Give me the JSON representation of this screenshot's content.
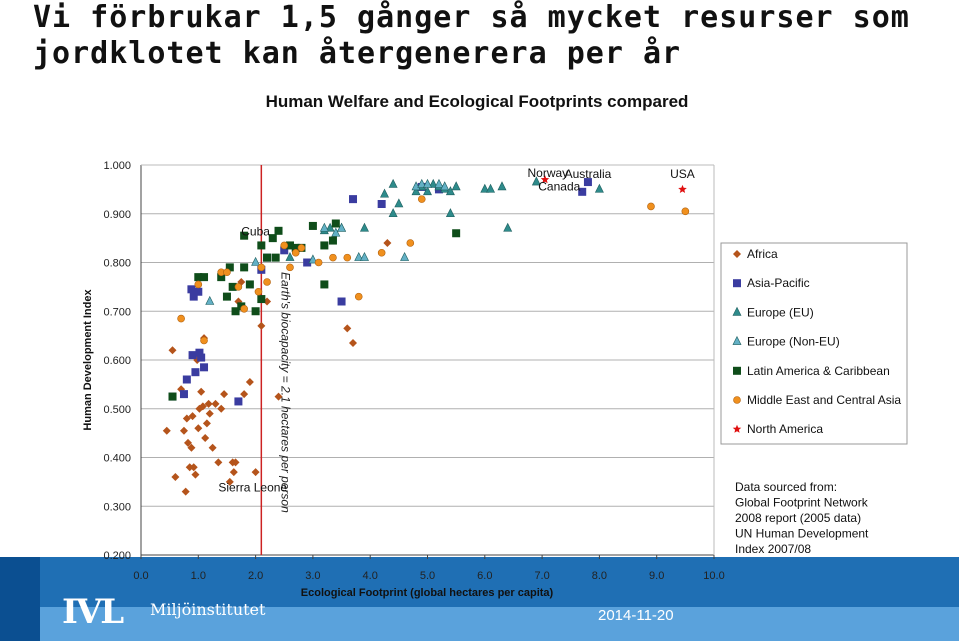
{
  "slide": {
    "title": "Vi förbrukar 1,5 gånger så mycket resurser som jordklotet kan återgenerera per år",
    "logo_text": "IVL",
    "logo_subtitle": "Miljöinstitutet",
    "date": "2014-11-20"
  },
  "colors": {
    "footer_dark": "#1f6fb4",
    "footer_light": "#5aa2dc"
  },
  "chart_data": {
    "type": "scatter",
    "title": "Human Welfare and Ecological Footprints compared",
    "xlabel": "Ecological Footprint (global hectares per capita)",
    "ylabel": "Human Development Index",
    "xlim": [
      0,
      10
    ],
    "ylim": [
      0.2,
      1.0
    ],
    "xticks": [
      "0.0",
      "1.0",
      "2.0",
      "3.0",
      "4.0",
      "5.0",
      "6.0",
      "7.0",
      "8.0",
      "9.0",
      "10.0"
    ],
    "yticks": [
      "0.200",
      "0.300",
      "0.400",
      "0.500",
      "0.600",
      "0.700",
      "0.800",
      "0.900",
      "1.000"
    ],
    "grid": "horizontal",
    "legend_position": "right",
    "reference_line": {
      "x": 2.1,
      "label": "Earth's biocapacity = 2.1 hectares per person",
      "color": "#cc2222"
    },
    "annotations": [
      {
        "text": "Cuba",
        "x": 2.0,
        "y": 0.855
      },
      {
        "text": "Sierra Leone",
        "x": 1.95,
        "y": 0.33
      },
      {
        "text": "Norway",
        "x": 7.1,
        "y": 0.975
      },
      {
        "text": "Canada",
        "x": 7.3,
        "y": 0.948
      },
      {
        "text": "Australia",
        "x": 7.8,
        "y": 0.973
      },
      {
        "text": "USA",
        "x": 9.45,
        "y": 0.973
      }
    ],
    "source_note": [
      "Data sourced from:",
      "Global Footprint Network",
      "2008 report (2005 data)",
      "UN Human Development",
      "Index 2007/08"
    ],
    "series": [
      {
        "name": "Africa",
        "marker": "diamond",
        "color": "#b5541b",
        "points": [
          [
            0.45,
            0.455
          ],
          [
            0.55,
            0.62
          ],
          [
            0.6,
            0.36
          ],
          [
            0.7,
            0.54
          ],
          [
            0.75,
            0.455
          ],
          [
            0.78,
            0.33
          ],
          [
            0.8,
            0.48
          ],
          [
            0.82,
            0.43
          ],
          [
            0.85,
            0.38
          ],
          [
            0.88,
            0.42
          ],
          [
            0.9,
            0.485
          ],
          [
            0.92,
            0.38
          ],
          [
            0.95,
            0.365
          ],
          [
            0.98,
            0.6
          ],
          [
            1.0,
            0.46
          ],
          [
            1.02,
            0.5
          ],
          [
            1.05,
            0.535
          ],
          [
            1.08,
            0.505
          ],
          [
            1.1,
            0.645
          ],
          [
            1.12,
            0.44
          ],
          [
            1.15,
            0.47
          ],
          [
            1.18,
            0.51
          ],
          [
            1.2,
            0.49
          ],
          [
            1.25,
            0.42
          ],
          [
            1.3,
            0.51
          ],
          [
            1.35,
            0.39
          ],
          [
            1.4,
            0.5
          ],
          [
            1.45,
            0.53
          ],
          [
            1.5,
            0.73
          ],
          [
            1.55,
            0.35
          ],
          [
            1.6,
            0.39
          ],
          [
            1.62,
            0.37
          ],
          [
            1.65,
            0.39
          ],
          [
            1.7,
            0.72
          ],
          [
            1.75,
            0.76
          ],
          [
            1.8,
            0.53
          ],
          [
            1.9,
            0.555
          ],
          [
            2.0,
            0.37
          ],
          [
            2.1,
            0.67
          ],
          [
            2.2,
            0.72
          ],
          [
            2.4,
            0.525
          ],
          [
            3.6,
            0.665
          ],
          [
            3.7,
            0.635
          ],
          [
            4.3,
            0.84
          ]
        ]
      },
      {
        "name": "Asia-Pacific",
        "marker": "square",
        "color": "#3a3ca0",
        "points": [
          [
            0.55,
            0.525
          ],
          [
            0.75,
            0.53
          ],
          [
            0.8,
            0.56
          ],
          [
            0.88,
            0.745
          ],
          [
            0.9,
            0.61
          ],
          [
            0.92,
            0.73
          ],
          [
            0.95,
            0.575
          ],
          [
            1.0,
            0.74
          ],
          [
            1.02,
            0.615
          ],
          [
            1.05,
            0.605
          ],
          [
            1.1,
            0.585
          ],
          [
            1.7,
            0.515
          ],
          [
            2.1,
            0.785
          ],
          [
            2.2,
            0.81
          ],
          [
            2.5,
            0.825
          ],
          [
            2.9,
            0.8
          ],
          [
            3.5,
            0.72
          ],
          [
            3.7,
            0.93
          ],
          [
            4.2,
            0.92
          ],
          [
            4.9,
            0.955
          ],
          [
            5.2,
            0.95
          ],
          [
            7.7,
            0.945
          ],
          [
            7.8,
            0.965
          ]
        ]
      },
      {
        "name": "Europe (EU)",
        "marker": "triangle",
        "color": "#2e8b8b",
        "points": [
          [
            2.6,
            0.81
          ],
          [
            3.2,
            0.865
          ],
          [
            3.3,
            0.87
          ],
          [
            3.5,
            0.87
          ],
          [
            3.9,
            0.87
          ],
          [
            4.25,
            0.94
          ],
          [
            4.4,
            0.96
          ],
          [
            4.4,
            0.9
          ],
          [
            4.5,
            0.92
          ],
          [
            4.8,
            0.945
          ],
          [
            4.9,
            0.955
          ],
          [
            5.0,
            0.945
          ],
          [
            5.1,
            0.96
          ],
          [
            5.2,
            0.955
          ],
          [
            5.3,
            0.95
          ],
          [
            5.4,
            0.945
          ],
          [
            5.4,
            0.9
          ],
          [
            5.5,
            0.955
          ],
          [
            6.0,
            0.95
          ],
          [
            6.1,
            0.95
          ],
          [
            6.3,
            0.955
          ],
          [
            6.4,
            0.87
          ],
          [
            6.9,
            0.965
          ],
          [
            8.0,
            0.95
          ]
        ]
      },
      {
        "name": "Europe (Non-EU)",
        "marker": "triangle",
        "color": "#63b0c5",
        "points": [
          [
            1.2,
            0.72
          ],
          [
            2.0,
            0.8
          ],
          [
            3.0,
            0.805
          ],
          [
            3.2,
            0.87
          ],
          [
            3.4,
            0.86
          ],
          [
            3.5,
            0.87
          ],
          [
            3.8,
            0.81
          ],
          [
            3.9,
            0.81
          ],
          [
            4.6,
            0.81
          ],
          [
            4.8,
            0.955
          ],
          [
            4.9,
            0.96
          ],
          [
            5.0,
            0.96
          ],
          [
            5.2,
            0.96
          ],
          [
            5.3,
            0.955
          ]
        ]
      },
      {
        "name": "Latin America & Caribbean",
        "marker": "square",
        "color": "#0f4d1a",
        "points": [
          [
            0.55,
            0.525
          ],
          [
            1.0,
            0.77
          ],
          [
            1.1,
            0.77
          ],
          [
            1.4,
            0.77
          ],
          [
            1.5,
            0.73
          ],
          [
            1.55,
            0.79
          ],
          [
            1.6,
            0.75
          ],
          [
            1.65,
            0.7
          ],
          [
            1.75,
            0.71
          ],
          [
            1.8,
            0.79
          ],
          [
            1.8,
            0.855
          ],
          [
            1.9,
            0.755
          ],
          [
            2.0,
            0.7
          ],
          [
            2.1,
            0.835
          ],
          [
            2.1,
            0.725
          ],
          [
            2.2,
            0.81
          ],
          [
            2.3,
            0.85
          ],
          [
            2.35,
            0.81
          ],
          [
            2.4,
            0.865
          ],
          [
            2.6,
            0.835
          ],
          [
            2.7,
            0.83
          ],
          [
            2.8,
            0.83
          ],
          [
            3.0,
            0.875
          ],
          [
            3.2,
            0.835
          ],
          [
            3.2,
            0.755
          ],
          [
            3.35,
            0.845
          ],
          [
            3.4,
            0.88
          ],
          [
            5.5,
            0.86
          ]
        ]
      },
      {
        "name": "Middle East and Central Asia",
        "marker": "circle",
        "color": "#f0901e",
        "points": [
          [
            0.7,
            0.685
          ],
          [
            1.0,
            0.755
          ],
          [
            1.1,
            0.64
          ],
          [
            1.4,
            0.78
          ],
          [
            1.5,
            0.78
          ],
          [
            1.7,
            0.75
          ],
          [
            1.8,
            0.705
          ],
          [
            2.05,
            0.74
          ],
          [
            2.1,
            0.79
          ],
          [
            2.2,
            0.76
          ],
          [
            2.5,
            0.835
          ],
          [
            2.6,
            0.79
          ],
          [
            2.7,
            0.82
          ],
          [
            2.8,
            0.83
          ],
          [
            3.1,
            0.8
          ],
          [
            3.35,
            0.81
          ],
          [
            3.6,
            0.81
          ],
          [
            3.8,
            0.73
          ],
          [
            4.2,
            0.82
          ],
          [
            4.7,
            0.84
          ],
          [
            4.9,
            0.93
          ],
          [
            8.9,
            0.915
          ],
          [
            9.5,
            0.905
          ]
        ]
      },
      {
        "name": "North America",
        "marker": "star",
        "color": "#e01010",
        "points": [
          [
            7.05,
            0.97
          ],
          [
            9.45,
            0.95
          ]
        ]
      }
    ]
  }
}
